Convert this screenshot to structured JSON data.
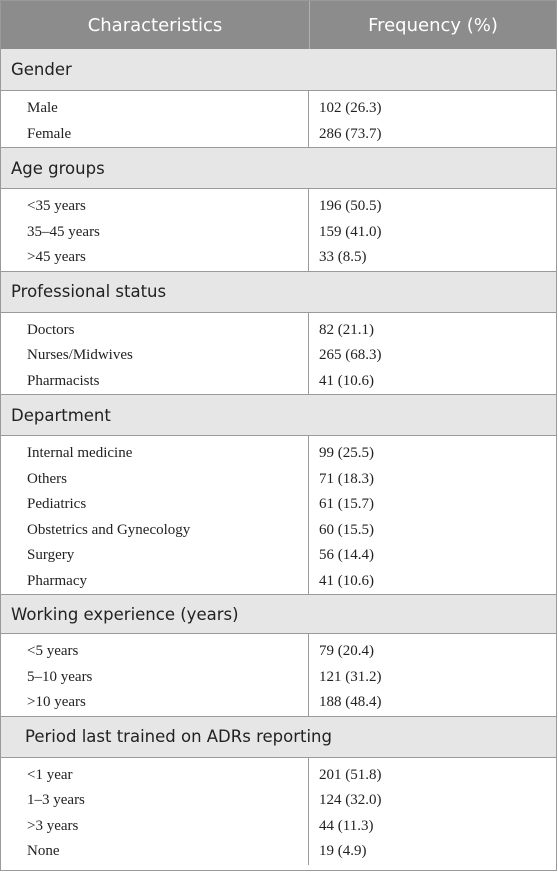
{
  "header": {
    "characteristics": "Characteristics",
    "frequency": "Frequency (%)"
  },
  "groups": [
    {
      "title": "Gender",
      "rows": [
        {
          "label": "Male",
          "value": "102 (26.3)"
        },
        {
          "label": "Female",
          "value": "286 (73.7)"
        }
      ]
    },
    {
      "title": "Age groups",
      "rows": [
        {
          "label": "<35 years",
          "value": "196 (50.5)"
        },
        {
          "label": "35–45 years",
          "value": "159 (41.0)"
        },
        {
          "label": ">45 years",
          "value": "33 (8.5)"
        }
      ]
    },
    {
      "title": "Professional status",
      "rows": [
        {
          "label": "Doctors",
          "value": "82 (21.1)"
        },
        {
          "label": "Nurses/Midwives",
          "value": "265 (68.3)"
        },
        {
          "label": "Pharmacists",
          "value": "41 (10.6)"
        }
      ]
    },
    {
      "title": "Department",
      "rows": [
        {
          "label": "Internal medicine",
          "value": "99 (25.5)"
        },
        {
          "label": "Others",
          "value": "71 (18.3)"
        },
        {
          "label": "Pediatrics",
          "value": "61 (15.7)"
        },
        {
          "label": "Obstetrics and Gynecology",
          "value": "60 (15.5)"
        },
        {
          "label": "Surgery",
          "value": "56 (14.4)"
        },
        {
          "label": "Pharmacy",
          "value": "41 (10.6)"
        }
      ]
    },
    {
      "title": "Working experience (years)",
      "rows": [
        {
          "label": "<5 years",
          "value": "79 (20.4)"
        },
        {
          "label": "5–10 years",
          "value": "121 (31.2)"
        },
        {
          "label": ">10 years",
          "value": "188 (48.4)"
        }
      ]
    },
    {
      "title": "Period last trained on ADRs reporting",
      "rows": [
        {
          "label": "<1 year",
          "value": "201 (51.8)"
        },
        {
          "label": "1–3 years",
          "value": "124 (32.0)"
        },
        {
          "label": ">3 years",
          "value": "44 (11.3)"
        },
        {
          "label": "None",
          "value": "19 (4.9)"
        }
      ]
    }
  ]
}
